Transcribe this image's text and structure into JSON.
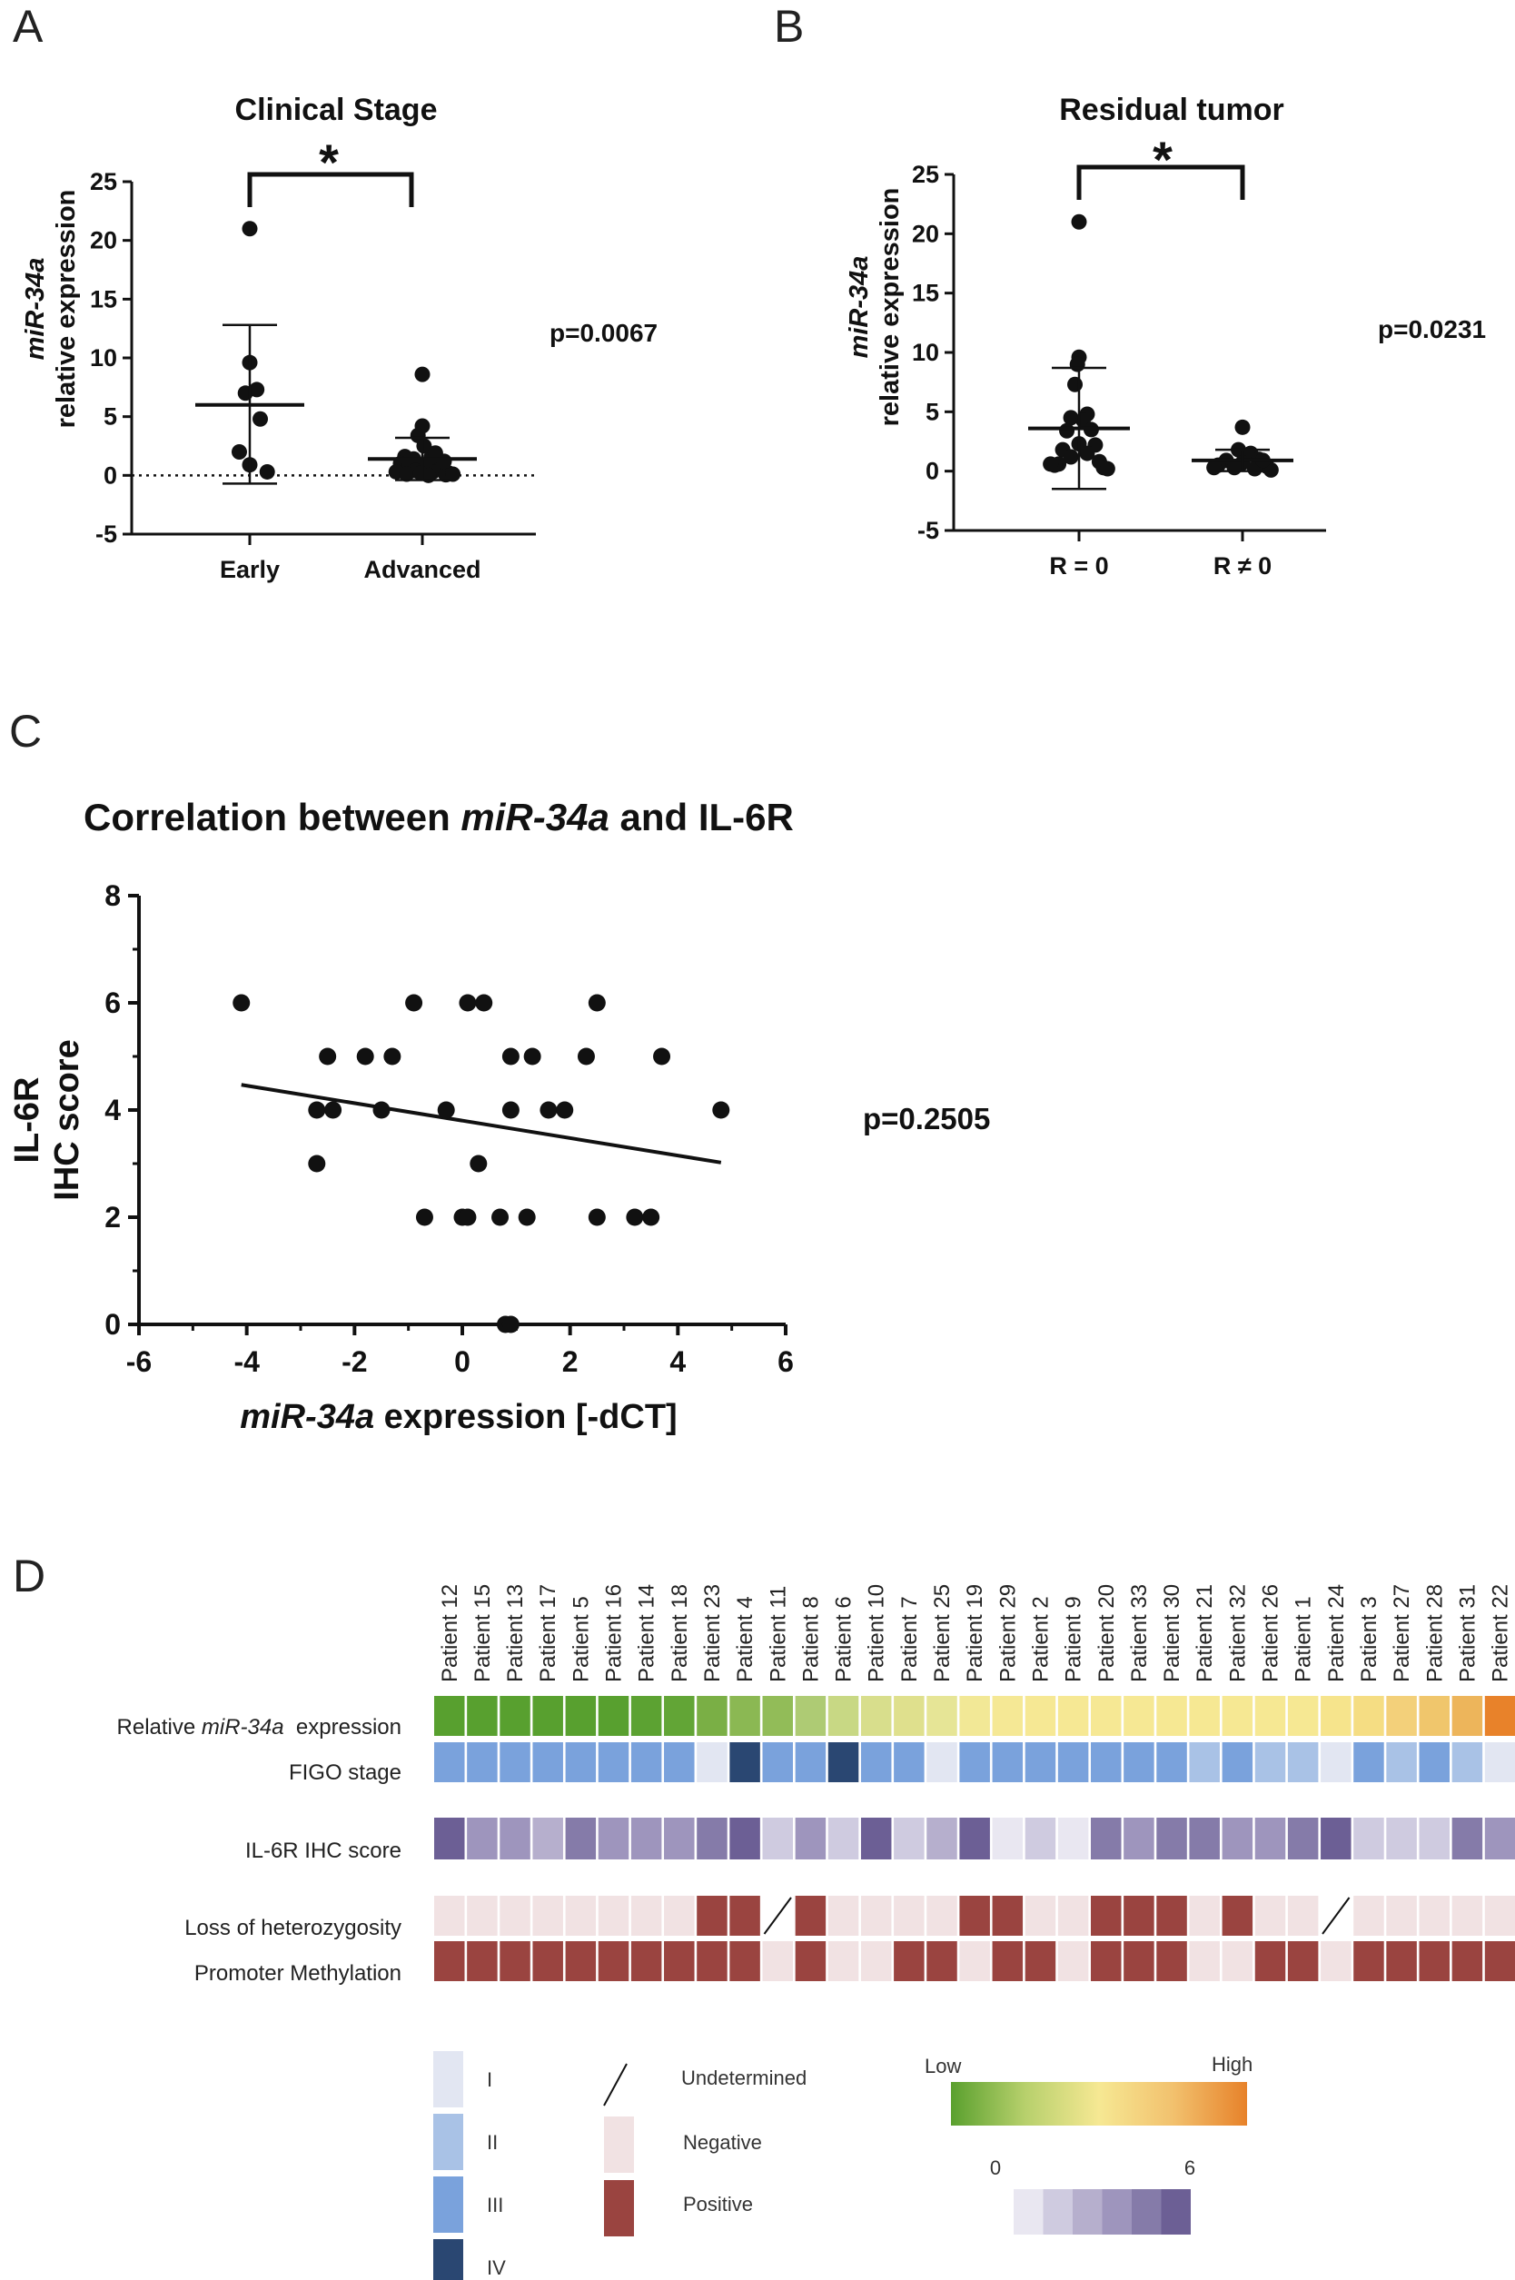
{
  "panels": {
    "a": "A",
    "b": "B",
    "c": "C",
    "d": "D"
  },
  "chart_data": [
    {
      "panel": "A",
      "type": "scatter",
      "title": "Clinical Stage",
      "ylabel_italic": "miR-34a",
      "ylabel": "relative expression",
      "ylim": [
        -5,
        25
      ],
      "yticks": [
        "25",
        "20",
        "15",
        "10",
        "5",
        "0",
        "-5"
      ],
      "categories": [
        "Early",
        "Advanced"
      ],
      "significance": "*",
      "p_value": "p=0.0067",
      "groups": [
        {
          "name": "Early",
          "mean": 6.0,
          "sd_low": -0.7,
          "sd_high": 12.8,
          "points": [
            [
              -0.12,
              2.0
            ],
            [
              0.0,
              21.0
            ],
            [
              0.0,
              9.6
            ],
            [
              -0.05,
              7.0
            ],
            [
              0.08,
              7.3
            ],
            [
              0.12,
              4.8
            ],
            [
              0.0,
              0.9
            ],
            [
              0.2,
              0.3
            ]
          ]
        },
        {
          "name": "Advanced",
          "mean": 1.4,
          "sd_low": -0.4,
          "sd_high": 3.2,
          "points": [
            [
              0.0,
              8.6
            ],
            [
              0.0,
              4.2
            ],
            [
              -0.05,
              3.4
            ],
            [
              0.02,
              2.5
            ],
            [
              -0.2,
              1.6
            ],
            [
              -0.1,
              1.4
            ],
            [
              0.1,
              1.5
            ],
            [
              0.18,
              1.0
            ],
            [
              -0.25,
              1.0
            ],
            [
              -0.15,
              0.8
            ],
            [
              0.05,
              0.9
            ],
            [
              0.22,
              0.6
            ],
            [
              -0.3,
              0.3
            ],
            [
              -0.08,
              0.4
            ],
            [
              0.12,
              0.3
            ],
            [
              0.3,
              0.2
            ],
            [
              -0.18,
              0.1
            ],
            [
              0.27,
              0.05
            ],
            [
              0.35,
              0.1
            ],
            [
              -0.02,
              0.2
            ],
            [
              0.07,
              0.0
            ],
            [
              0.15,
              1.9
            ],
            [
              0.25,
              1.2
            ]
          ]
        }
      ]
    },
    {
      "panel": "B",
      "type": "scatter",
      "title": "Residual tumor",
      "ylabel_italic": "miR-34a",
      "ylabel": "relative expression",
      "ylim": [
        -5,
        25
      ],
      "yticks": [
        "25",
        "20",
        "15",
        "10",
        "5",
        "0",
        "-5"
      ],
      "categories": [
        "R = 0",
        "R ≠ 0"
      ],
      "significance": "*",
      "p_value": "p=0.0231",
      "groups": [
        {
          "name": "R = 0",
          "mean": 3.6,
          "sd_low": -1.5,
          "sd_high": 8.7,
          "points": [
            [
              0.0,
              21.0
            ],
            [
              0.0,
              9.6
            ],
            [
              -0.02,
              9.0
            ],
            [
              -0.05,
              7.3
            ],
            [
              0.1,
              4.8
            ],
            [
              -0.1,
              4.5
            ],
            [
              0.05,
              4.3
            ],
            [
              0.15,
              3.5
            ],
            [
              -0.15,
              3.4
            ],
            [
              0.0,
              2.3
            ],
            [
              0.2,
              2.2
            ],
            [
              -0.2,
              1.8
            ],
            [
              0.1,
              1.5
            ],
            [
              -0.1,
              1.2
            ],
            [
              0.25,
              0.8
            ],
            [
              -0.25,
              0.6
            ],
            [
              -0.3,
              0.5
            ],
            [
              0.3,
              0.3
            ],
            [
              0.35,
              0.2
            ],
            [
              -0.35,
              0.6
            ]
          ]
        },
        {
          "name": "R ≠ 0",
          "mean": 0.9,
          "sd_low": 0.0,
          "sd_high": 1.8,
          "points": [
            [
              0.0,
              3.7
            ],
            [
              -0.05,
              1.8
            ],
            [
              0.1,
              1.5
            ],
            [
              -0.2,
              0.9
            ],
            [
              0.2,
              1.0
            ],
            [
              -0.3,
              0.5
            ],
            [
              0.3,
              0.4
            ],
            [
              0.0,
              0.7
            ],
            [
              -0.1,
              0.3
            ],
            [
              0.15,
              0.2
            ],
            [
              0.35,
              0.1
            ],
            [
              -0.35,
              0.3
            ],
            [
              0.25,
              0.9
            ]
          ]
        }
      ]
    },
    {
      "panel": "C",
      "type": "scatter",
      "title_prefix": "Correlation between ",
      "title_italic": "miR-34a",
      "title_suffix": " and IL-6R",
      "xlabel_italic": "miR-34a",
      "xlabel": " expression [-dCT]",
      "ylabel_line1": "IL-6R",
      "ylabel_line2": "IHC score",
      "xlim": [
        -6,
        6
      ],
      "ylim": [
        0,
        8
      ],
      "xticks": [
        "-6",
        "-4",
        "-2",
        "0",
        "2",
        "4",
        "6"
      ],
      "yticks": [
        "8",
        "6",
        "4",
        "2",
        "0"
      ],
      "p_value": "p=0.2505",
      "trend": {
        "x": [
          -4.1,
          4.8
        ],
        "y": [
          4.47,
          3.02
        ]
      },
      "points": [
        [
          -4.1,
          6
        ],
        [
          -2.7,
          4
        ],
        [
          -2.7,
          3
        ],
        [
          -2.5,
          5
        ],
        [
          -2.4,
          4
        ],
        [
          -1.8,
          5
        ],
        [
          -1.5,
          4
        ],
        [
          -1.3,
          5
        ],
        [
          -0.9,
          6
        ],
        [
          -0.7,
          2
        ],
        [
          -0.3,
          4
        ],
        [
          0,
          2
        ],
        [
          0.1,
          6
        ],
        [
          0.1,
          2
        ],
        [
          0.3,
          3
        ],
        [
          0.4,
          6
        ],
        [
          0.7,
          2
        ],
        [
          0.8,
          0
        ],
        [
          0.9,
          5
        ],
        [
          0.9,
          4
        ],
        [
          0.9,
          0
        ],
        [
          1.2,
          2
        ],
        [
          1.3,
          5
        ],
        [
          1.6,
          4
        ],
        [
          1.9,
          4
        ],
        [
          2.3,
          5
        ],
        [
          2.5,
          6
        ],
        [
          2.5,
          2
        ],
        [
          3.2,
          2
        ],
        [
          3.5,
          2
        ],
        [
          3.7,
          5
        ],
        [
          4.8,
          4
        ]
      ]
    },
    {
      "panel": "D",
      "type": "heatmap",
      "patients": [
        "Patient 12",
        "Patient 15",
        "Patient 13",
        "Patient 17",
        "Patient 5",
        "Patient 16",
        "Patient 14",
        "Patient 18",
        "Patient 23",
        "Patient 4",
        "Patient 11",
        "Patient 8",
        "Patient 6",
        "Patient 10",
        "Patient 7",
        "Patient 25",
        "Patient 19",
        "Patient 29",
        "Patient 2",
        "Patient 9",
        "Patient 20",
        "Patient 33",
        "Patient 30",
        "Patient 21",
        "Patient 32",
        "Patient 26",
        "Patient 1",
        "Patient 24",
        "Patient 3",
        "Patient 27",
        "Patient 28",
        "Patient 31",
        "Patient 22"
      ],
      "rows": [
        {
          "label_prefix": "Relative ",
          "label_italic": "miR-34a",
          "label_suffix": "  expression",
          "colors": [
            "#58a02f",
            "#58a02f",
            "#58a02f",
            "#58a02f",
            "#58a02f",
            "#58a02f",
            "#5ca232",
            "#62a536",
            "#7aaf45",
            "#8bb853",
            "#92bc58",
            "#aecb74",
            "#c8d884",
            "#d8de8c",
            "#dfe08d",
            "#e6e596",
            "#f2e896",
            "#f5e895",
            "#f6e894",
            "#f6e894",
            "#f6e894",
            "#f6e894",
            "#f6e893",
            "#f6e893",
            "#f6e893",
            "#f6e893",
            "#f6e893",
            "#f6e48c",
            "#f5dd83",
            "#f3d07a",
            "#f0c66c",
            "#edb55b",
            "#e8822a"
          ]
        },
        {
          "label": "FIGO stage",
          "values": [
            3,
            3,
            3,
            3,
            3,
            3,
            3,
            3,
            1,
            4,
            3,
            3,
            4,
            3,
            3,
            1,
            3,
            3,
            3,
            3,
            3,
            3,
            3,
            2,
            3,
            2,
            2,
            1,
            3,
            2,
            3,
            2,
            1
          ]
        },
        {
          "label": "IL-6R IHC score",
          "values": [
            6,
            4,
            4,
            3,
            5,
            4,
            4,
            4,
            5,
            6,
            2,
            4,
            2,
            6,
            2,
            3,
            6,
            1,
            2,
            1,
            5,
            4,
            5,
            5,
            4,
            4,
            5,
            6,
            2,
            2,
            2,
            5,
            4
          ]
        },
        {
          "label": "Loss of heterozygosity",
          "values": [
            "N",
            "N",
            "N",
            "N",
            "N",
            "N",
            "N",
            "N",
            "P",
            "P",
            "U",
            "P",
            "N",
            "N",
            "N",
            "N",
            "P",
            "P",
            "N",
            "N",
            "P",
            "P",
            "P",
            "N",
            "P",
            "N",
            "N",
            "U",
            "N",
            "N",
            "N",
            "N",
            "N"
          ]
        },
        {
          "label": "Promoter Methylation",
          "values": [
            "P",
            "P",
            "P",
            "P",
            "P",
            "P",
            "P",
            "P",
            "P",
            "P",
            "N",
            "P",
            "N",
            "N",
            "P",
            "P",
            "N",
            "P",
            "P",
            "N",
            "P",
            "P",
            "P",
            "N",
            "N",
            "P",
            "P",
            "N",
            "P",
            "P",
            "P",
            "P",
            "P"
          ]
        }
      ],
      "legend": {
        "figo": [
          {
            "label": "I",
            "color": "#e2e6f2"
          },
          {
            "label": "II",
            "color": "#a9c2e6"
          },
          {
            "label": "III",
            "color": "#7aa2dc"
          },
          {
            "label": "IV",
            "color": "#2a4772"
          }
        ],
        "status": [
          {
            "label": "Undetermined"
          },
          {
            "label": "Negative",
            "color": "#f1e2e3"
          },
          {
            "label": "Positive",
            "color": "#9a4440"
          }
        ],
        "gradient_low": "Low",
        "gradient_high": "High",
        "ihc_min": "0",
        "ihc_max": "6",
        "ihc_colors": [
          "#e9e7f1",
          "#cfcbe0",
          "#b6afcd",
          "#9e95bd",
          "#857ba9",
          "#6c5f95"
        ]
      }
    }
  ]
}
